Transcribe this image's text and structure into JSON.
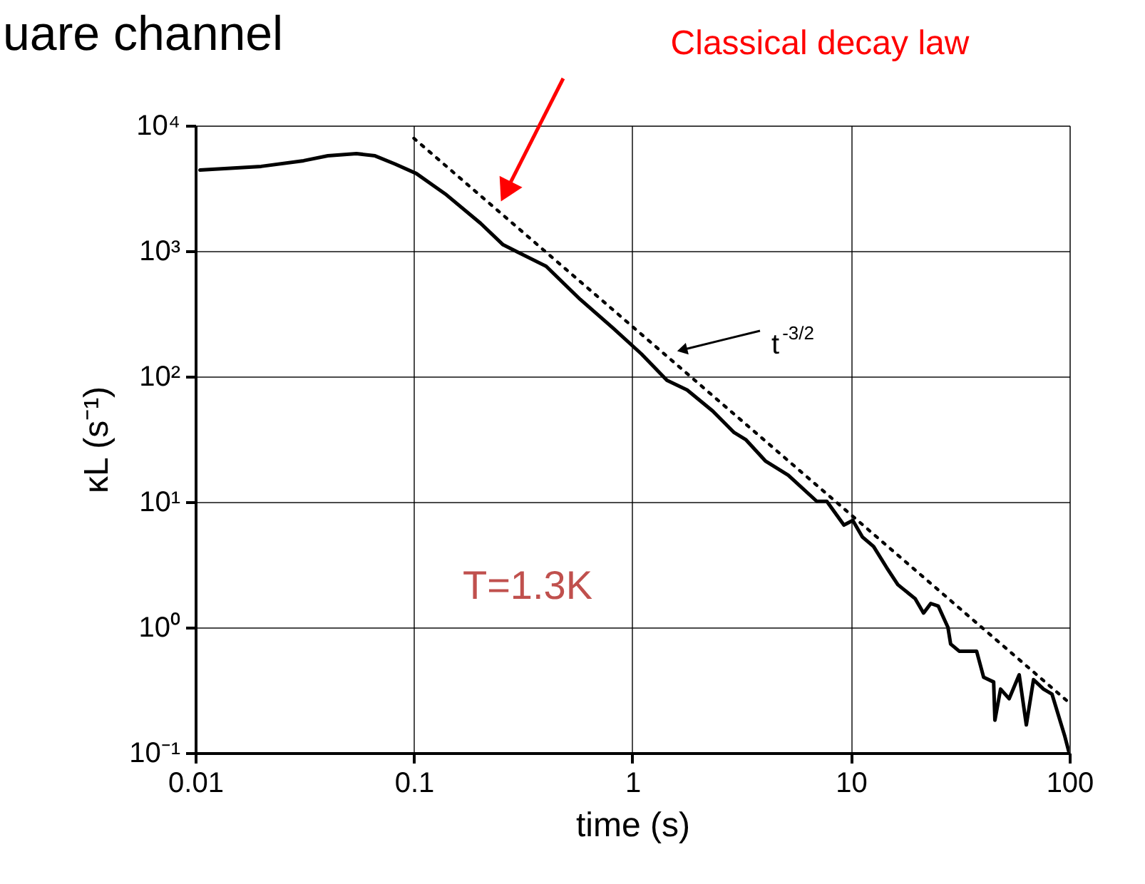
{
  "chart_data": {
    "type": "line",
    "title": "uare channel",
    "xlabel": "time (s)",
    "ylabel": "κL  (s⁻¹)",
    "log": "xy",
    "grid": true,
    "line_style": "solid",
    "marker": "none",
    "xlim": [
      0.01,
      100
    ],
    "xticks": [
      0.01,
      0.1,
      1,
      10,
      100
    ],
    "ylim": [
      0.1,
      10000
    ],
    "yticks": [
      {
        "value": 0.1,
        "label": "10⁻¹"
      },
      {
        "value": 1,
        "label": "10⁰"
      },
      {
        "value": 10,
        "label": "10¹"
      },
      {
        "value": 100,
        "label": "10²"
      },
      {
        "value": 1000,
        "label": "10³"
      },
      {
        "value": 10000,
        "label": "10⁴"
      }
    ],
    "series": [
      {
        "color": "#000000",
        "x": [
          0.0105,
          0.02,
          0.0313,
          0.0404,
          0.0546,
          0.0664,
          0.0819,
          0.1026,
          0.141,
          0.202,
          0.256,
          0.298,
          0.403,
          0.577,
          0.815,
          1.1,
          1.44,
          1.78,
          2.33,
          2.92,
          3.3,
          4.06,
          5.17,
          6.98,
          7.76,
          9.29,
          10.2,
          11.3,
          12.7,
          14.6,
          16.4,
          19.7,
          21.5,
          23.2,
          25.1,
          27.8,
          28.6,
          31.3,
          37.6,
          40.5,
          45.0,
          45.6,
          48.4,
          53.0,
          58.9,
          63.5,
          68.5,
          76.1,
          83.2,
          89.7,
          95.3,
          99.7
        ],
        "values": [
          4410,
          4720,
          5240,
          5730,
          5970,
          5730,
          4930,
          4140,
          2800,
          1660,
          1120,
          982,
          755,
          411,
          243,
          151,
          93,
          78,
          53,
          35.7,
          31.4,
          21.2,
          16.3,
          10.1,
          10.1,
          6.53,
          7.11,
          5.24,
          4.41,
          2.98,
          2.19,
          1.69,
          1.3,
          1.55,
          1.48,
          1.0,
          0.736,
          0.646,
          0.646,
          0.4,
          0.367,
          0.182,
          0.322,
          0.27,
          0.419,
          0.167,
          0.383,
          0.322,
          0.294,
          0.191,
          0.135,
          0.1
        ]
      },
      {
        "type": "line",
        "color": "#000000",
        "line_style": "dotted",
        "x": [
          0.1,
          100
        ],
        "values": [
          7900,
          0.25
        ]
      }
    ],
    "annotations": [
      "Classical decay law",
      {
        "text": "t$^{-3/2}$",
        "x": 1.72,
        "y": 164
      },
      "T=1.3K"
    ]
  }
}
